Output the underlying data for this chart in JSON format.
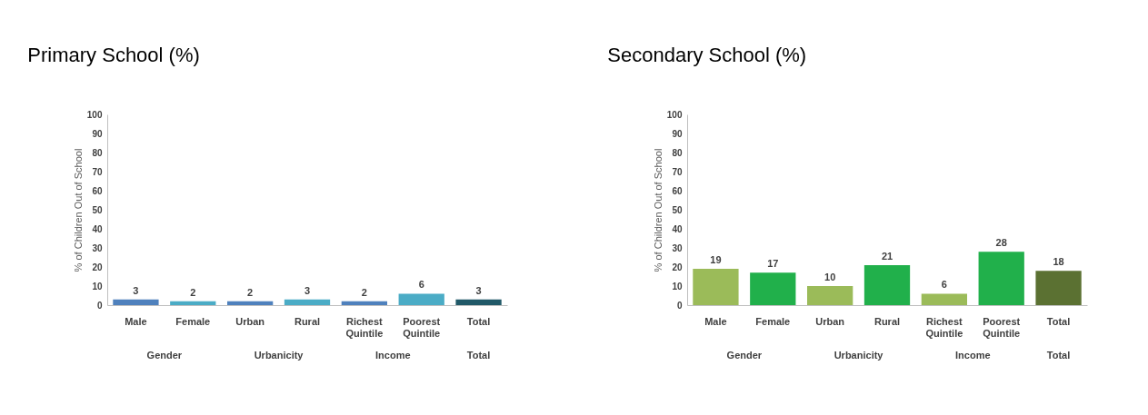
{
  "chart_data": [
    {
      "type": "bar",
      "title": "Primary School (%)",
      "ylabel": "% of Children Out of School",
      "categories": [
        "Male",
        "Female",
        "Urban",
        "Rural",
        "Richest Quintile",
        "Poorest Quintile",
        "Total"
      ],
      "values": [
        3,
        2,
        2,
        3,
        2,
        6,
        3
      ],
      "colors": [
        "#4f81bd",
        "#4bacc6",
        "#4f81bd",
        "#4bacc6",
        "#4f81bd",
        "#4bacc6",
        "#215968"
      ],
      "ylim": [
        0,
        100
      ],
      "yticks": [
        0,
        10,
        20,
        30,
        40,
        50,
        60,
        70,
        80,
        90,
        100
      ],
      "grid": false,
      "data_labels": true,
      "annotations": [
        "Gender",
        "Urbanicity",
        "Income",
        "Total"
      ]
    },
    {
      "type": "bar",
      "title": "Secondary School (%)",
      "ylabel": "% of Children Out of School",
      "categories": [
        "Male",
        "Female",
        "Urban",
        "Rural",
        "Richest Quintile",
        "Poorest Quintile",
        "Total"
      ],
      "values": [
        19,
        17,
        10,
        21,
        6,
        28,
        18
      ],
      "colors": [
        "#9bbb59",
        "#21b04b",
        "#9bbb59",
        "#21b04b",
        "#9bbb59",
        "#21b04b",
        "#5b7132"
      ],
      "ylim": [
        0,
        100
      ],
      "yticks": [
        0,
        10,
        20,
        30,
        40,
        50,
        60,
        70,
        80,
        90,
        100
      ],
      "grid": false,
      "data_labels": true,
      "annotations": [
        "Gender",
        "Urbanicity",
        "Income",
        "Total"
      ]
    }
  ]
}
